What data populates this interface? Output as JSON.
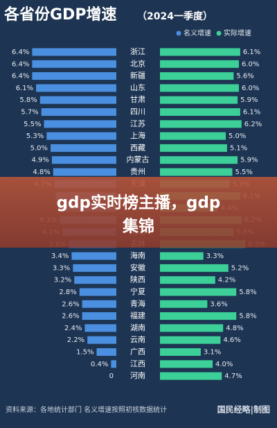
{
  "chart_data": {
    "type": "butterfly",
    "title": "各省份GDP增速",
    "subtitle": "（2024一季度）",
    "categories": [
      "浙江",
      "北京",
      "新疆",
      "山东",
      "甘肃",
      "四川",
      "江苏",
      "上海",
      "西藏",
      "内蒙古",
      "贵州",
      "天津",
      null,
      null,
      null,
      "河北",
      "吉林",
      "海南",
      "安徽",
      "陕西",
      "宁夏",
      "青海",
      "福建",
      "湖南",
      "云南",
      "广西",
      "江西",
      "河南"
    ],
    "series": [
      {
        "name": "名义增速",
        "color": "#4a8fe0",
        "values": [
          6.4,
          6.4,
          6.4,
          6.1,
          5.8,
          5.7,
          5.5,
          5.3,
          5.0,
          4.9,
          4.8,
          4.7,
          4.6,
          4.4,
          4.3,
          4.1,
          3.6,
          3.4,
          3.3,
          3.2,
          2.8,
          2.6,
          2.6,
          2.4,
          2.2,
          1.5,
          0.4,
          0
        ],
        "value_labels": [
          "6.4%",
          "6.4%",
          "6.4%",
          "6.1%",
          "5.8%",
          "5.7%",
          "5.5%",
          "5.3%",
          "5.0%",
          "4.9%",
          "4.8%",
          "4.7%",
          null,
          null,
          "4.3%",
          "4.1%",
          "3.6%",
          "3.4%",
          "3.3%",
          "3.2%",
          "2.8%",
          "2.6%",
          "2.6%",
          "2.4%",
          "2.2%",
          "1.5%",
          "0.4%",
          "0"
        ]
      },
      {
        "name": "实际增速",
        "color": "#3ccf98",
        "values": [
          6.1,
          6.0,
          5.6,
          6.0,
          5.9,
          6.1,
          6.2,
          5.0,
          5.1,
          5.9,
          5.5,
          5.3,
          6.1,
          4.4,
          6.2,
          5.6,
          6.5,
          3.3,
          5.2,
          4.2,
          5.8,
          3.6,
          5.8,
          4.8,
          4.6,
          3.1,
          4.0,
          4.7
        ],
        "value_labels": [
          "6.1%",
          "6.0%",
          "5.6%",
          "6.0%",
          "5.9%",
          "6.1%",
          "6.2%",
          "5.0%",
          "5.1%",
          "5.9%",
          "5.5%",
          "5.3%",
          "6.1%",
          "4.4%",
          "6.2%",
          "5.6%",
          "6.5%",
          "3.3%",
          "5.2%",
          "4.2%",
          "5.8%",
          "3.6%",
          "5.8%",
          "4.8%",
          "4.6%",
          "3.1%",
          "4.0%",
          "4.7%"
        ]
      }
    ],
    "xlim": [
      0,
      7
    ],
    "source": "资料来源：各地统计部门 名义增速按照初核数据统计",
    "watermark": "国民经略|制图"
  },
  "overlay": {
    "lines": [
      "gdp实时榜主播，gdp",
      "集锦"
    ]
  }
}
